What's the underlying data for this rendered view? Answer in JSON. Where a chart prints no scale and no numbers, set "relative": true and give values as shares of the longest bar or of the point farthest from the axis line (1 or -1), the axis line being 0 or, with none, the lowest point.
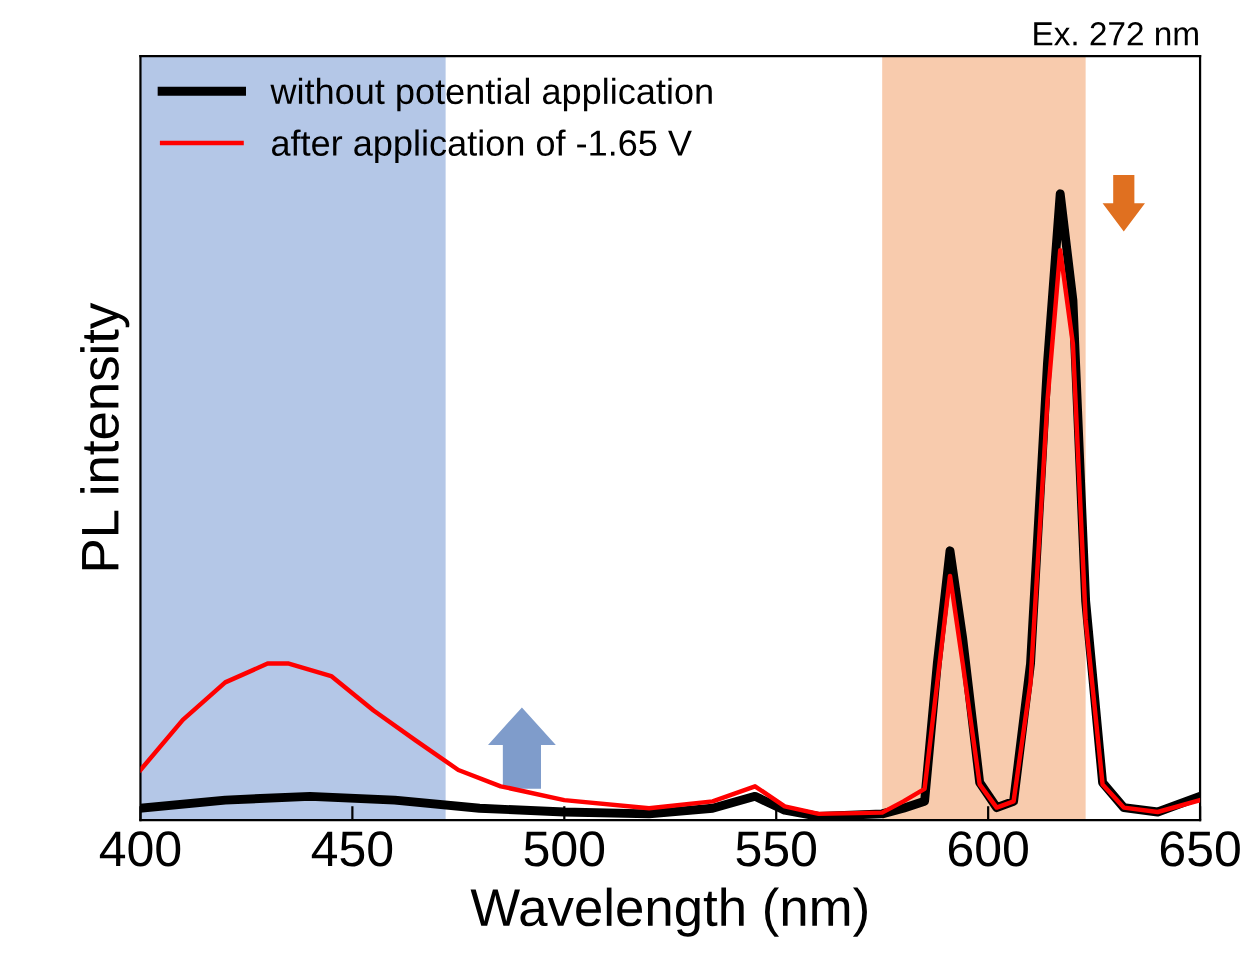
{
  "chart_data": {
    "type": "line",
    "xlabel": "Wavelength (nm)",
    "ylabel": "PL intensity",
    "relative": true,
    "xlim": [
      400,
      650
    ],
    "xticks": [
      400,
      450,
      500,
      550,
      600,
      650
    ],
    "grid": false,
    "legend": "top left",
    "marker": "none",
    "line_style": "solid",
    "annotations": [
      "Ex. 272 nm"
    ],
    "bands": [
      {
        "axis": "x",
        "from": 400,
        "to": 472,
        "color": "#b4c7e7"
      },
      {
        "axis": "x",
        "from": 575,
        "to": 623,
        "color": "#f8cbad"
      }
    ],
    "series": [
      {
        "name": "without potential application",
        "color": "#000000",
        "x": [
          400,
          420,
          440,
          460,
          480,
          500,
          520,
          535,
          545,
          552,
          560,
          575,
          580,
          585,
          588,
          591,
          594,
          598,
          602,
          606,
          610,
          614,
          617,
          620,
          623,
          627,
          632,
          640,
          650
        ],
        "values": [
          0.019,
          0.032,
          0.038,
          0.032,
          0.019,
          0.013,
          0.01,
          0.019,
          0.038,
          0.016,
          0.006,
          0.01,
          0.019,
          0.03,
          0.25,
          0.43,
          0.29,
          0.06,
          0.02,
          0.03,
          0.25,
          0.73,
          1.0,
          0.83,
          0.35,
          0.06,
          0.02,
          0.013,
          0.038
        ]
      },
      {
        "name": "after application of -1.65 V",
        "color": "#ff0000",
        "x": [
          400,
          410,
          420,
          430,
          435,
          445,
          455,
          465,
          475,
          485,
          500,
          520,
          535,
          545,
          552,
          560,
          575,
          580,
          585,
          588,
          591,
          594,
          598,
          602,
          606,
          610,
          614,
          617,
          620,
          623,
          627,
          632,
          640,
          650
        ],
        "values": [
          0.08,
          0.16,
          0.22,
          0.25,
          0.25,
          0.23,
          0.175,
          0.127,
          0.08,
          0.054,
          0.032,
          0.019,
          0.03,
          0.054,
          0.022,
          0.01,
          0.012,
          0.03,
          0.05,
          0.22,
          0.39,
          0.25,
          0.057,
          0.02,
          0.03,
          0.22,
          0.67,
          0.91,
          0.76,
          0.32,
          0.057,
          0.02,
          0.013,
          0.032
        ]
      }
    ]
  }
}
